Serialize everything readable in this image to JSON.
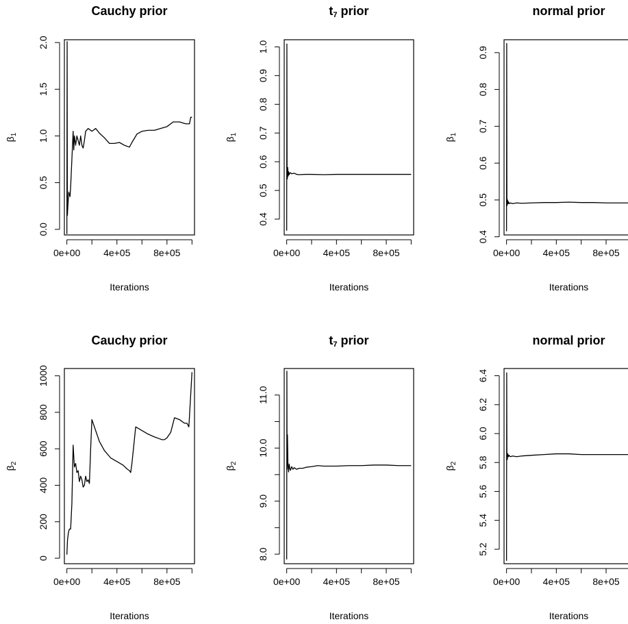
{
  "chart_data": [
    {
      "panel": "cauchy-beta1",
      "type": "line",
      "title": "Cauchy prior",
      "title_sub": "",
      "xlabel": "Iterations",
      "ylabel": "β",
      "ylabel_sub": "1",
      "xlim": [
        -20000,
        1020000
      ],
      "ylim": [
        -0.06,
        2.03
      ],
      "x_ticks": [
        0,
        400000,
        800000
      ],
      "x_tick_labels": [
        "0e+00",
        "4e+05",
        "8e+05"
      ],
      "y_ticks": [
        0.0,
        0.5,
        1.0,
        1.5,
        2.0
      ],
      "y_tick_labels": [
        "0.0",
        "0.5",
        "1.0",
        "1.5",
        "2.0"
      ],
      "series": [
        {
          "x": [
            0,
            2000,
            4000,
            8000,
            15000,
            25000,
            30000,
            40000,
            50000,
            55000,
            60000,
            70000,
            80000,
            90000,
            100000,
            110000,
            120000,
            130000,
            140000,
            150000,
            170000,
            200000,
            230000,
            260000,
            300000,
            340000,
            380000,
            420000,
            460000,
            500000,
            520000,
            560000,
            600000,
            650000,
            700000,
            750000,
            800000,
            850000,
            900000,
            950000,
            980000,
            990000,
            1000000
          ],
          "y": [
            -0.05,
            2.01,
            0.15,
            0.25,
            0.4,
            0.35,
            0.45,
            0.75,
            1.05,
            0.85,
            1.0,
            0.9,
            1.0,
            0.95,
            0.9,
            1.0,
            0.9,
            0.87,
            0.95,
            1.05,
            1.08,
            1.05,
            1.08,
            1.03,
            0.98,
            0.92,
            0.92,
            0.93,
            0.9,
            0.88,
            0.93,
            1.02,
            1.05,
            1.06,
            1.06,
            1.08,
            1.1,
            1.15,
            1.15,
            1.13,
            1.13,
            1.2,
            1.2
          ]
        }
      ]
    },
    {
      "panel": "t7-beta1",
      "type": "line",
      "title": "t",
      "title_sub": "7",
      "title_suffix": " prior",
      "xlabel": "Iterations",
      "ylabel": "β",
      "ylabel_sub": "1",
      "xlim": [
        -20000,
        1020000
      ],
      "ylim": [
        0.345,
        1.025
      ],
      "x_ticks": [
        0,
        400000,
        800000
      ],
      "x_tick_labels": [
        "0e+00",
        "4e+05",
        "8e+05"
      ],
      "y_ticks": [
        0.4,
        0.5,
        0.6,
        0.7,
        0.8,
        0.9,
        1.0
      ],
      "y_tick_labels": [
        "0.4",
        "0.5",
        "0.6",
        "0.7",
        "0.8",
        "0.9",
        "1.0"
      ],
      "series": [
        {
          "x": [
            0,
            1500,
            3000,
            5000,
            8000,
            12000,
            16000,
            20000,
            25000,
            30000,
            40000,
            60000,
            80000,
            100000,
            150000,
            200000,
            300000,
            400000,
            500000,
            600000,
            700000,
            800000,
            900000,
            1000000
          ],
          "y": [
            0.36,
            1.01,
            0.57,
            0.54,
            0.58,
            0.55,
            0.565,
            0.555,
            0.56,
            0.562,
            0.558,
            0.56,
            0.556,
            0.555,
            0.556,
            0.556,
            0.555,
            0.556,
            0.556,
            0.556,
            0.556,
            0.556,
            0.556,
            0.556
          ]
        }
      ]
    },
    {
      "panel": "normal-beta1",
      "type": "line",
      "title": "normal prior",
      "title_sub": "",
      "xlabel": "Iterations",
      "ylabel": "β",
      "ylabel_sub": "1",
      "xlim": [
        -20000,
        1020000
      ],
      "ylim": [
        0.405,
        0.935
      ],
      "x_ticks": [
        0,
        400000,
        800000
      ],
      "x_tick_labels": [
        "0e+00",
        "4e+05",
        "8e+05"
      ],
      "y_ticks": [
        0.4,
        0.5,
        0.6,
        0.7,
        0.8,
        0.9
      ],
      "y_tick_labels": [
        "0.4",
        "0.5",
        "0.6",
        "0.7",
        "0.8",
        "0.9"
      ],
      "series": [
        {
          "x": [
            0,
            1500,
            3000,
            5000,
            8000,
            12000,
            16000,
            20000,
            30000,
            50000,
            80000,
            120000,
            200000,
            300000,
            400000,
            500000,
            600000,
            700000,
            800000,
            900000,
            1000000
          ],
          "y": [
            0.415,
            0.925,
            0.5,
            0.485,
            0.5,
            0.49,
            0.495,
            0.49,
            0.492,
            0.49,
            0.492,
            0.491,
            0.492,
            0.493,
            0.493,
            0.494,
            0.493,
            0.493,
            0.492,
            0.492,
            0.492
          ]
        }
      ]
    },
    {
      "panel": "cauchy-beta2",
      "type": "line",
      "title": "Cauchy prior",
      "title_sub": "",
      "xlabel": "Iterations",
      "ylabel": "β",
      "ylabel_sub": "2",
      "xlim": [
        -20000,
        1020000
      ],
      "ylim": [
        -30,
        1040
      ],
      "x_ticks": [
        0,
        400000,
        800000
      ],
      "x_tick_labels": [
        "0e+00",
        "4e+05",
        "8e+05"
      ],
      "y_ticks": [
        0,
        200,
        400,
        600,
        800,
        1000
      ],
      "y_tick_labels": [
        "0",
        "200",
        "400",
        "600",
        "800",
        "1000"
      ],
      "series": [
        {
          "x": [
            0,
            5000,
            12000,
            20000,
            30000,
            40000,
            50000,
            60000,
            70000,
            80000,
            90000,
            100000,
            110000,
            120000,
            130000,
            140000,
            150000,
            160000,
            170000,
            180000,
            190000,
            200000,
            220000,
            260000,
            300000,
            350000,
            400000,
            450000,
            480000,
            500000,
            510000,
            520000,
            550000,
            600000,
            650000,
            700000,
            740000,
            760000,
            780000,
            800000,
            830000,
            860000,
            900000,
            940000,
            960000,
            975000,
            990000,
            1000000
          ],
          "y": [
            20,
            100,
            140,
            160,
            160,
            300,
            620,
            500,
            520,
            470,
            480,
            420,
            450,
            430,
            390,
            400,
            450,
            420,
            430,
            410,
            600,
            760,
            720,
            640,
            590,
            550,
            530,
            510,
            490,
            480,
            470,
            520,
            720,
            700,
            680,
            665,
            655,
            650,
            650,
            660,
            690,
            770,
            760,
            740,
            740,
            720,
            900,
            1020
          ]
        }
      ]
    },
    {
      "panel": "t7-beta2",
      "type": "line",
      "title": "t",
      "title_sub": "7",
      "title_suffix": " prior",
      "xlabel": "Iterations",
      "ylabel": "β",
      "ylabel_sub": "2",
      "xlim": [
        -20000,
        1020000
      ],
      "ylim": [
        7.82,
        11.5
      ],
      "x_ticks": [
        0,
        400000,
        800000
      ],
      "x_tick_labels": [
        "0e+00",
        "4e+05",
        "8e+05"
      ],
      "y_ticks": [
        8.0,
        8.5,
        9.0,
        9.5,
        10.0,
        10.5,
        11.0
      ],
      "y_tick_labels": [
        "8.0",
        "",
        "9.0",
        "",
        "10.0",
        "",
        "11.0"
      ],
      "series": [
        {
          "x": [
            0,
            1500,
            3000,
            6000,
            10000,
            15000,
            20000,
            25000,
            30000,
            40000,
            50000,
            60000,
            80000,
            100000,
            130000,
            160000,
            200000,
            250000,
            300000,
            400000,
            500000,
            600000,
            700000,
            800000,
            900000,
            1000000
          ],
          "y": [
            7.9,
            11.45,
            9.6,
            10.25,
            9.7,
            9.55,
            9.7,
            9.62,
            9.58,
            9.65,
            9.6,
            9.63,
            9.6,
            9.62,
            9.62,
            9.64,
            9.65,
            9.67,
            9.66,
            9.66,
            9.67,
            9.67,
            9.68,
            9.68,
            9.67,
            9.67
          ]
        }
      ]
    },
    {
      "panel": "normal-beta2",
      "type": "line",
      "title": "normal prior",
      "title_sub": "",
      "xlabel": "Iterations",
      "ylabel": "β",
      "ylabel_sub": "2",
      "xlim": [
        -20000,
        1020000
      ],
      "ylim": [
        5.1,
        6.45
      ],
      "x_ticks": [
        0,
        400000,
        800000
      ],
      "x_tick_labels": [
        "0e+00",
        "4e+05",
        "8e+05"
      ],
      "y_ticks": [
        5.2,
        5.4,
        5.6,
        5.8,
        6.0,
        6.2,
        6.4
      ],
      "y_tick_labels": [
        "5.2",
        "5.4",
        "5.6",
        "5.8",
        "6.0",
        "6.2",
        "6.4"
      ],
      "series": [
        {
          "x": [
            0,
            1500,
            3000,
            6000,
            10000,
            15000,
            20000,
            30000,
            50000,
            80000,
            120000,
            200000,
            300000,
            400000,
            500000,
            600000,
            700000,
            800000,
            900000,
            1000000
          ],
          "y": [
            5.12,
            6.42,
            5.87,
            5.82,
            5.86,
            5.84,
            5.85,
            5.84,
            5.845,
            5.84,
            5.845,
            5.85,
            5.855,
            5.86,
            5.86,
            5.855,
            5.855,
            5.855,
            5.855,
            5.855
          ]
        }
      ]
    }
  ]
}
